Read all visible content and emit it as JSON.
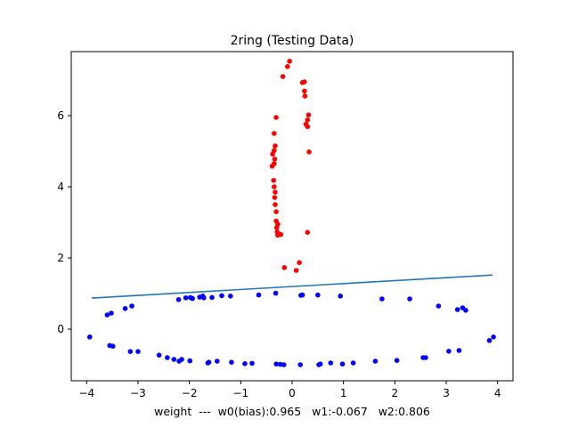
{
  "chart_data": {
    "type": "scatter",
    "title": "2ring (Testing Data)",
    "xlabel": "weight  ---  w0(bias):0.965   w1:-0.067   w2:0.806",
    "ylabel": "",
    "xlim": [
      -4.3,
      4.3
    ],
    "ylim": [
      -1.45,
      7.8
    ],
    "xticks": [
      -4,
      -3,
      -2,
      -1,
      0,
      1,
      2,
      3,
      4
    ],
    "yticks": [
      0,
      2,
      4,
      6
    ],
    "grid": false,
    "legend": "none",
    "colors": {
      "red_points": "#ff0000",
      "blue_points": "#0000ff",
      "line": "#1f77b4"
    },
    "series": [
      {
        "color": "#ff0000",
        "points": [
          [
            -0.05,
            7.53
          ],
          [
            -0.09,
            7.38
          ],
          [
            -0.18,
            7.1
          ],
          [
            0.24,
            6.95
          ],
          [
            0.2,
            6.93
          ],
          [
            0.24,
            6.69
          ],
          [
            0.25,
            6.55
          ],
          [
            0.32,
            6.02
          ],
          [
            0.3,
            5.88
          ],
          [
            0.27,
            5.76
          ],
          [
            0.3,
            5.69
          ],
          [
            -0.31,
            5.95
          ],
          [
            -0.35,
            5.5
          ],
          [
            -0.33,
            5.15
          ],
          [
            -0.35,
            5.02
          ],
          [
            -0.38,
            4.92
          ],
          [
            -0.34,
            4.78
          ],
          [
            -0.35,
            4.65
          ],
          [
            -0.39,
            4.58
          ],
          [
            0.33,
            4.98
          ],
          [
            -0.36,
            4.18
          ],
          [
            -0.35,
            4.0
          ],
          [
            -0.33,
            3.85
          ],
          [
            -0.34,
            3.7
          ],
          [
            -0.33,
            3.5
          ],
          [
            -0.31,
            3.3
          ],
          [
            -0.31,
            3.04
          ],
          [
            -0.28,
            2.95
          ],
          [
            -0.3,
            2.85
          ],
          [
            -0.29,
            2.73
          ],
          [
            -0.27,
            2.68
          ],
          [
            -0.28,
            2.64
          ],
          [
            -0.22,
            2.66
          ],
          [
            0.3,
            2.72
          ],
          [
            -0.15,
            1.73
          ],
          [
            0.08,
            1.65
          ],
          [
            0.14,
            1.87
          ]
        ]
      },
      {
        "color": "#0000ff",
        "points": [
          [
            -3.6,
            0.4
          ],
          [
            -3.52,
            0.45
          ],
          [
            -3.25,
            0.58
          ],
          [
            -3.12,
            0.65
          ],
          [
            -2.21,
            0.83
          ],
          [
            -2.07,
            0.88
          ],
          [
            -1.98,
            0.89
          ],
          [
            -1.94,
            0.86
          ],
          [
            -1.8,
            0.9
          ],
          [
            -1.74,
            0.93
          ],
          [
            -1.72,
            0.88
          ],
          [
            -1.56,
            0.89
          ],
          [
            -1.37,
            0.94
          ],
          [
            -1.2,
            0.93
          ],
          [
            -0.65,
            0.96
          ],
          [
            -0.32,
            1.01
          ],
          [
            0.17,
            0.95
          ],
          [
            0.2,
            0.96
          ],
          [
            0.5,
            0.96
          ],
          [
            0.94,
            0.93
          ],
          [
            1.75,
            0.85
          ],
          [
            2.29,
            0.85
          ],
          [
            2.85,
            0.65
          ],
          [
            3.22,
            0.55
          ],
          [
            3.32,
            0.6
          ],
          [
            3.38,
            0.53
          ],
          [
            3.92,
            -0.22
          ],
          [
            3.84,
            -0.32
          ],
          [
            3.25,
            -0.6
          ],
          [
            3.05,
            -0.62
          ],
          [
            2.6,
            -0.8
          ],
          [
            2.55,
            -0.8
          ],
          [
            2.04,
            -0.88
          ],
          [
            1.62,
            -0.9
          ],
          [
            1.19,
            -0.95
          ],
          [
            0.98,
            -0.98
          ],
          [
            0.75,
            -0.95
          ],
          [
            0.55,
            -0.98
          ],
          [
            0.52,
            -1.0
          ],
          [
            0.16,
            -1.0
          ],
          [
            -0.16,
            -1.0
          ],
          [
            -0.23,
            -0.99
          ],
          [
            -0.31,
            -0.98
          ],
          [
            -0.78,
            -0.96
          ],
          [
            -0.92,
            -0.97
          ],
          [
            -1.18,
            -0.93
          ],
          [
            -1.46,
            -0.9
          ],
          [
            -1.62,
            -0.93
          ],
          [
            -1.64,
            -0.95
          ],
          [
            -1.99,
            -0.89
          ],
          [
            -2.15,
            -0.85
          ],
          [
            -2.2,
            -0.9
          ],
          [
            -2.3,
            -0.85
          ],
          [
            -2.43,
            -0.8
          ],
          [
            -2.59,
            -0.73
          ],
          [
            -3.0,
            -0.63
          ],
          [
            -3.15,
            -0.63
          ],
          [
            -3.49,
            -0.48
          ],
          [
            -3.55,
            -0.46
          ],
          [
            -3.94,
            -0.22
          ]
        ]
      }
    ],
    "line": {
      "x": [
        -3.9,
        3.9
      ],
      "y": [
        0.873,
        1.521
      ]
    }
  }
}
